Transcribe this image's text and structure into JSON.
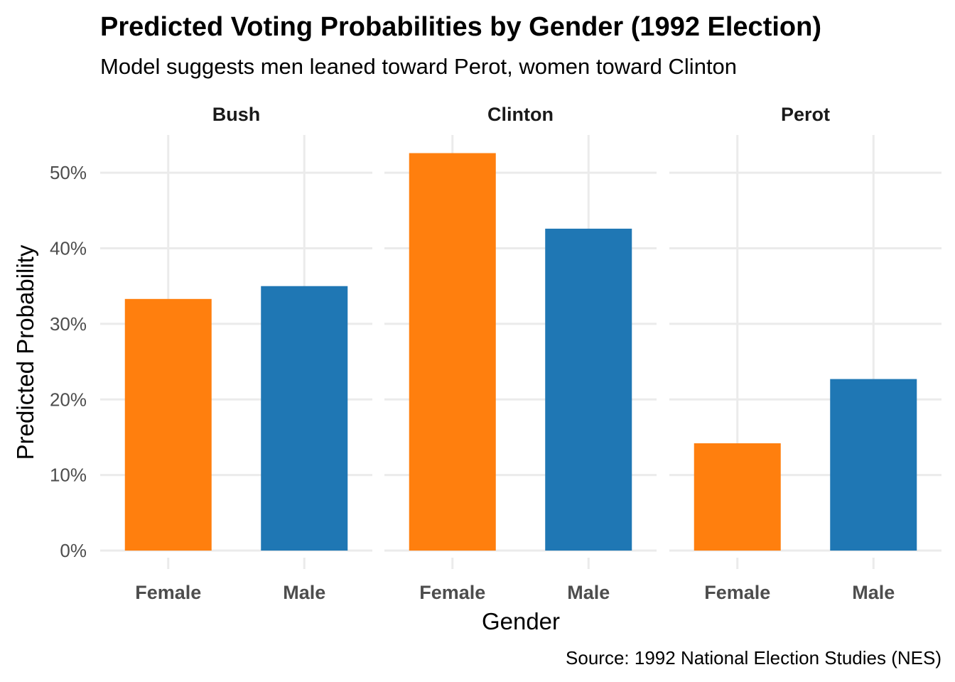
{
  "chart_data": {
    "type": "bar",
    "title": "Predicted Voting Probabilities by Gender (1992 Election)",
    "subtitle": "Model suggests men leaned toward Perot, women toward Clinton",
    "xlabel": "Gender",
    "ylabel": "Predicted Probability",
    "caption": "Source: 1992 National Election Studies (NES)",
    "ylim": [
      0,
      0.55
    ],
    "yticks": [
      0,
      0.1,
      0.2,
      0.3,
      0.4,
      0.5
    ],
    "ytick_labels": [
      "0%",
      "10%",
      "20%",
      "30%",
      "40%",
      "50%"
    ],
    "categories": [
      "Female",
      "Male"
    ],
    "colors": {
      "Female": "#FF7F0E",
      "Male": "#1F77B4"
    },
    "grid": true,
    "legend": "none",
    "facets": [
      {
        "label": "Bush",
        "values": [
          0.333,
          0.35
        ]
      },
      {
        "label": "Clinton",
        "values": [
          0.526,
          0.426
        ]
      },
      {
        "label": "Perot",
        "values": [
          0.142,
          0.227
        ]
      }
    ]
  }
}
